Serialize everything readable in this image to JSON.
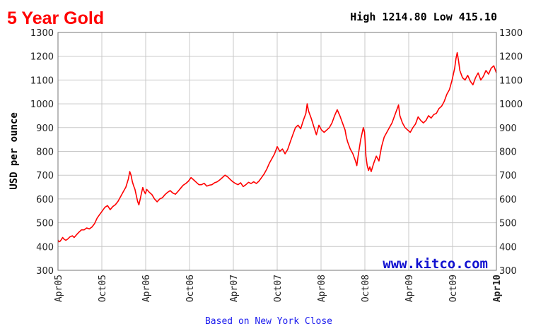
{
  "chart_data": {
    "type": "line",
    "title": "5 Year Gold",
    "high_low": "High 1214.80 Low 415.10",
    "ylabel": "USD per ounce",
    "watermark": "www.kitco.com",
    "footnote": "Based on New York Close",
    "ylim": [
      300,
      1300
    ],
    "y_ticks": [
      300,
      400,
      500,
      600,
      700,
      800,
      900,
      1000,
      1100,
      1200,
      1300
    ],
    "x_ticks": [
      "Apr05",
      "Oct05",
      "Apr06",
      "Oct06",
      "Apr07",
      "Oct07",
      "Apr08",
      "Oct08",
      "Apr09",
      "Oct09",
      "Apr10"
    ],
    "grid": true,
    "line_color": "#ff0000",
    "series": [
      {
        "points": [
          [
            0,
            428
          ],
          [
            0.03,
            420
          ],
          [
            0.08,
            422
          ],
          [
            0.12,
            428
          ],
          [
            0.18,
            438
          ],
          [
            0.22,
            432
          ],
          [
            0.3,
            426
          ],
          [
            0.38,
            432
          ],
          [
            0.45,
            440
          ],
          [
            0.55,
            445
          ],
          [
            0.62,
            438
          ],
          [
            0.7,
            448
          ],
          [
            0.8,
            460
          ],
          [
            0.9,
            470
          ],
          [
            1.0,
            470
          ],
          [
            1.1,
            478
          ],
          [
            1.2,
            474
          ],
          [
            1.3,
            482
          ],
          [
            1.4,
            496
          ],
          [
            1.5,
            520
          ],
          [
            1.6,
            535
          ],
          [
            1.7,
            550
          ],
          [
            1.8,
            565
          ],
          [
            1.9,
            572
          ],
          [
            2.0,
            555
          ],
          [
            2.1,
            568
          ],
          [
            2.2,
            576
          ],
          [
            2.3,
            590
          ],
          [
            2.4,
            610
          ],
          [
            2.5,
            630
          ],
          [
            2.6,
            650
          ],
          [
            2.7,
            685
          ],
          [
            2.75,
            715
          ],
          [
            2.8,
            700
          ],
          [
            2.85,
            672
          ],
          [
            2.9,
            655
          ],
          [
            2.95,
            640
          ],
          [
            3.0,
            615
          ],
          [
            3.05,
            590
          ],
          [
            3.1,
            575
          ],
          [
            3.15,
            600
          ],
          [
            3.2,
            625
          ],
          [
            3.25,
            648
          ],
          [
            3.3,
            632
          ],
          [
            3.35,
            622
          ],
          [
            3.4,
            640
          ],
          [
            3.5,
            628
          ],
          [
            3.6,
            618
          ],
          [
            3.7,
            600
          ],
          [
            3.8,
            588
          ],
          [
            3.9,
            600
          ],
          [
            4.0,
            605
          ],
          [
            4.1,
            618
          ],
          [
            4.2,
            628
          ],
          [
            4.3,
            635
          ],
          [
            4.4,
            625
          ],
          [
            4.5,
            620
          ],
          [
            4.6,
            632
          ],
          [
            4.7,
            645
          ],
          [
            4.8,
            658
          ],
          [
            4.9,
            665
          ],
          [
            5.0,
            675
          ],
          [
            5.1,
            690
          ],
          [
            5.2,
            680
          ],
          [
            5.3,
            670
          ],
          [
            5.4,
            660
          ],
          [
            5.5,
            660
          ],
          [
            5.6,
            666
          ],
          [
            5.7,
            654
          ],
          [
            5.8,
            658
          ],
          [
            5.9,
            660
          ],
          [
            6.0,
            668
          ],
          [
            6.1,
            672
          ],
          [
            6.2,
            680
          ],
          [
            6.3,
            690
          ],
          [
            6.4,
            700
          ],
          [
            6.5,
            693
          ],
          [
            6.6,
            682
          ],
          [
            6.7,
            672
          ],
          [
            6.8,
            665
          ],
          [
            6.9,
            660
          ],
          [
            7.0,
            668
          ],
          [
            7.1,
            652
          ],
          [
            7.2,
            660
          ],
          [
            7.3,
            670
          ],
          [
            7.4,
            665
          ],
          [
            7.5,
            672
          ],
          [
            7.6,
            665
          ],
          [
            7.7,
            675
          ],
          [
            7.8,
            690
          ],
          [
            7.9,
            705
          ],
          [
            8.0,
            725
          ],
          [
            8.1,
            750
          ],
          [
            8.2,
            770
          ],
          [
            8.3,
            790
          ],
          [
            8.4,
            820
          ],
          [
            8.5,
            800
          ],
          [
            8.6,
            810
          ],
          [
            8.7,
            790
          ],
          [
            8.8,
            808
          ],
          [
            8.9,
            840
          ],
          [
            9.0,
            870
          ],
          [
            9.1,
            900
          ],
          [
            9.2,
            910
          ],
          [
            9.3,
            895
          ],
          [
            9.4,
            930
          ],
          [
            9.5,
            960
          ],
          [
            9.55,
            1000
          ],
          [
            9.6,
            970
          ],
          [
            9.7,
            940
          ],
          [
            9.8,
            905
          ],
          [
            9.9,
            870
          ],
          [
            10.0,
            910
          ],
          [
            10.1,
            890
          ],
          [
            10.2,
            880
          ],
          [
            10.3,
            890
          ],
          [
            10.4,
            900
          ],
          [
            10.5,
            920
          ],
          [
            10.6,
            950
          ],
          [
            10.7,
            975
          ],
          [
            10.8,
            950
          ],
          [
            10.9,
            920
          ],
          [
            11.0,
            890
          ],
          [
            11.05,
            860
          ],
          [
            11.1,
            840
          ],
          [
            11.2,
            810
          ],
          [
            11.3,
            790
          ],
          [
            11.4,
            760
          ],
          [
            11.45,
            740
          ],
          [
            11.5,
            780
          ],
          [
            11.6,
            850
          ],
          [
            11.7,
            900
          ],
          [
            11.75,
            880
          ],
          [
            11.8,
            780
          ],
          [
            11.85,
            740
          ],
          [
            11.9,
            720
          ],
          [
            11.95,
            735
          ],
          [
            12.0,
            715
          ],
          [
            12.1,
            750
          ],
          [
            12.2,
            780
          ],
          [
            12.3,
            760
          ],
          [
            12.4,
            820
          ],
          [
            12.5,
            860
          ],
          [
            12.6,
            880
          ],
          [
            12.7,
            900
          ],
          [
            12.8,
            920
          ],
          [
            12.9,
            950
          ],
          [
            13.0,
            980
          ],
          [
            13.05,
            995
          ],
          [
            13.1,
            950
          ],
          [
            13.2,
            920
          ],
          [
            13.3,
            900
          ],
          [
            13.4,
            890
          ],
          [
            13.5,
            880
          ],
          [
            13.6,
            900
          ],
          [
            13.7,
            915
          ],
          [
            13.8,
            945
          ],
          [
            13.9,
            930
          ],
          [
            14.0,
            920
          ],
          [
            14.1,
            930
          ],
          [
            14.2,
            950
          ],
          [
            14.3,
            940
          ],
          [
            14.4,
            955
          ],
          [
            14.5,
            960
          ],
          [
            14.6,
            980
          ],
          [
            14.7,
            990
          ],
          [
            14.8,
            1010
          ],
          [
            14.9,
            1040
          ],
          [
            15.0,
            1060
          ],
          [
            15.1,
            1100
          ],
          [
            15.2,
            1150
          ],
          [
            15.25,
            1190
          ],
          [
            15.3,
            1215
          ],
          [
            15.35,
            1180
          ],
          [
            15.4,
            1140
          ],
          [
            15.5,
            1110
          ],
          [
            15.6,
            1100
          ],
          [
            15.7,
            1120
          ],
          [
            15.8,
            1095
          ],
          [
            15.9,
            1080
          ],
          [
            16.0,
            1110
          ],
          [
            16.1,
            1130
          ],
          [
            16.2,
            1100
          ],
          [
            16.3,
            1115
          ],
          [
            16.4,
            1140
          ],
          [
            16.5,
            1125
          ],
          [
            16.6,
            1150
          ],
          [
            16.7,
            1160
          ],
          [
            16.8,
            1130
          ]
        ]
      }
    ]
  }
}
